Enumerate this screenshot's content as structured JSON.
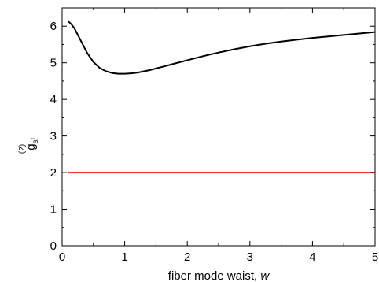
{
  "chart_data": {
    "type": "line",
    "xlabel": "fiber mode waist, ",
    "xlabel_var": "w",
    "ylabel": {
      "main": "g",
      "superscript": "(2)",
      "subscript": "si"
    },
    "xlim": [
      0,
      5
    ],
    "ylim": [
      0,
      6.5
    ],
    "x_ticks": [
      "0",
      "1",
      "2",
      "3",
      "4",
      "5"
    ],
    "y_ticks": [
      "0",
      "1",
      "2",
      "3",
      "4",
      "5",
      "6"
    ],
    "grid": false,
    "legend": "none",
    "series": [
      {
        "color": "#000000",
        "x": [
          0.1,
          0.15,
          0.2,
          0.3,
          0.4,
          0.5,
          0.6,
          0.7,
          0.8,
          0.9,
          1.0,
          1.1,
          1.2,
          1.4,
          1.6,
          1.8,
          2.0,
          2.25,
          2.5,
          2.75,
          3.0,
          3.25,
          3.5,
          3.75,
          4.0,
          4.25,
          4.5,
          4.75,
          5.0
        ],
        "y": [
          6.13,
          6.05,
          5.93,
          5.6,
          5.27,
          5.02,
          4.86,
          4.77,
          4.72,
          4.7,
          4.7,
          4.71,
          4.73,
          4.8,
          4.89,
          4.98,
          5.07,
          5.18,
          5.28,
          5.37,
          5.45,
          5.52,
          5.58,
          5.63,
          5.68,
          5.72,
          5.76,
          5.8,
          5.84
        ]
      },
      {
        "color": "#e0201b",
        "x": [
          0.1,
          5.0
        ],
        "y": [
          2.0,
          2.0
        ]
      }
    ]
  }
}
